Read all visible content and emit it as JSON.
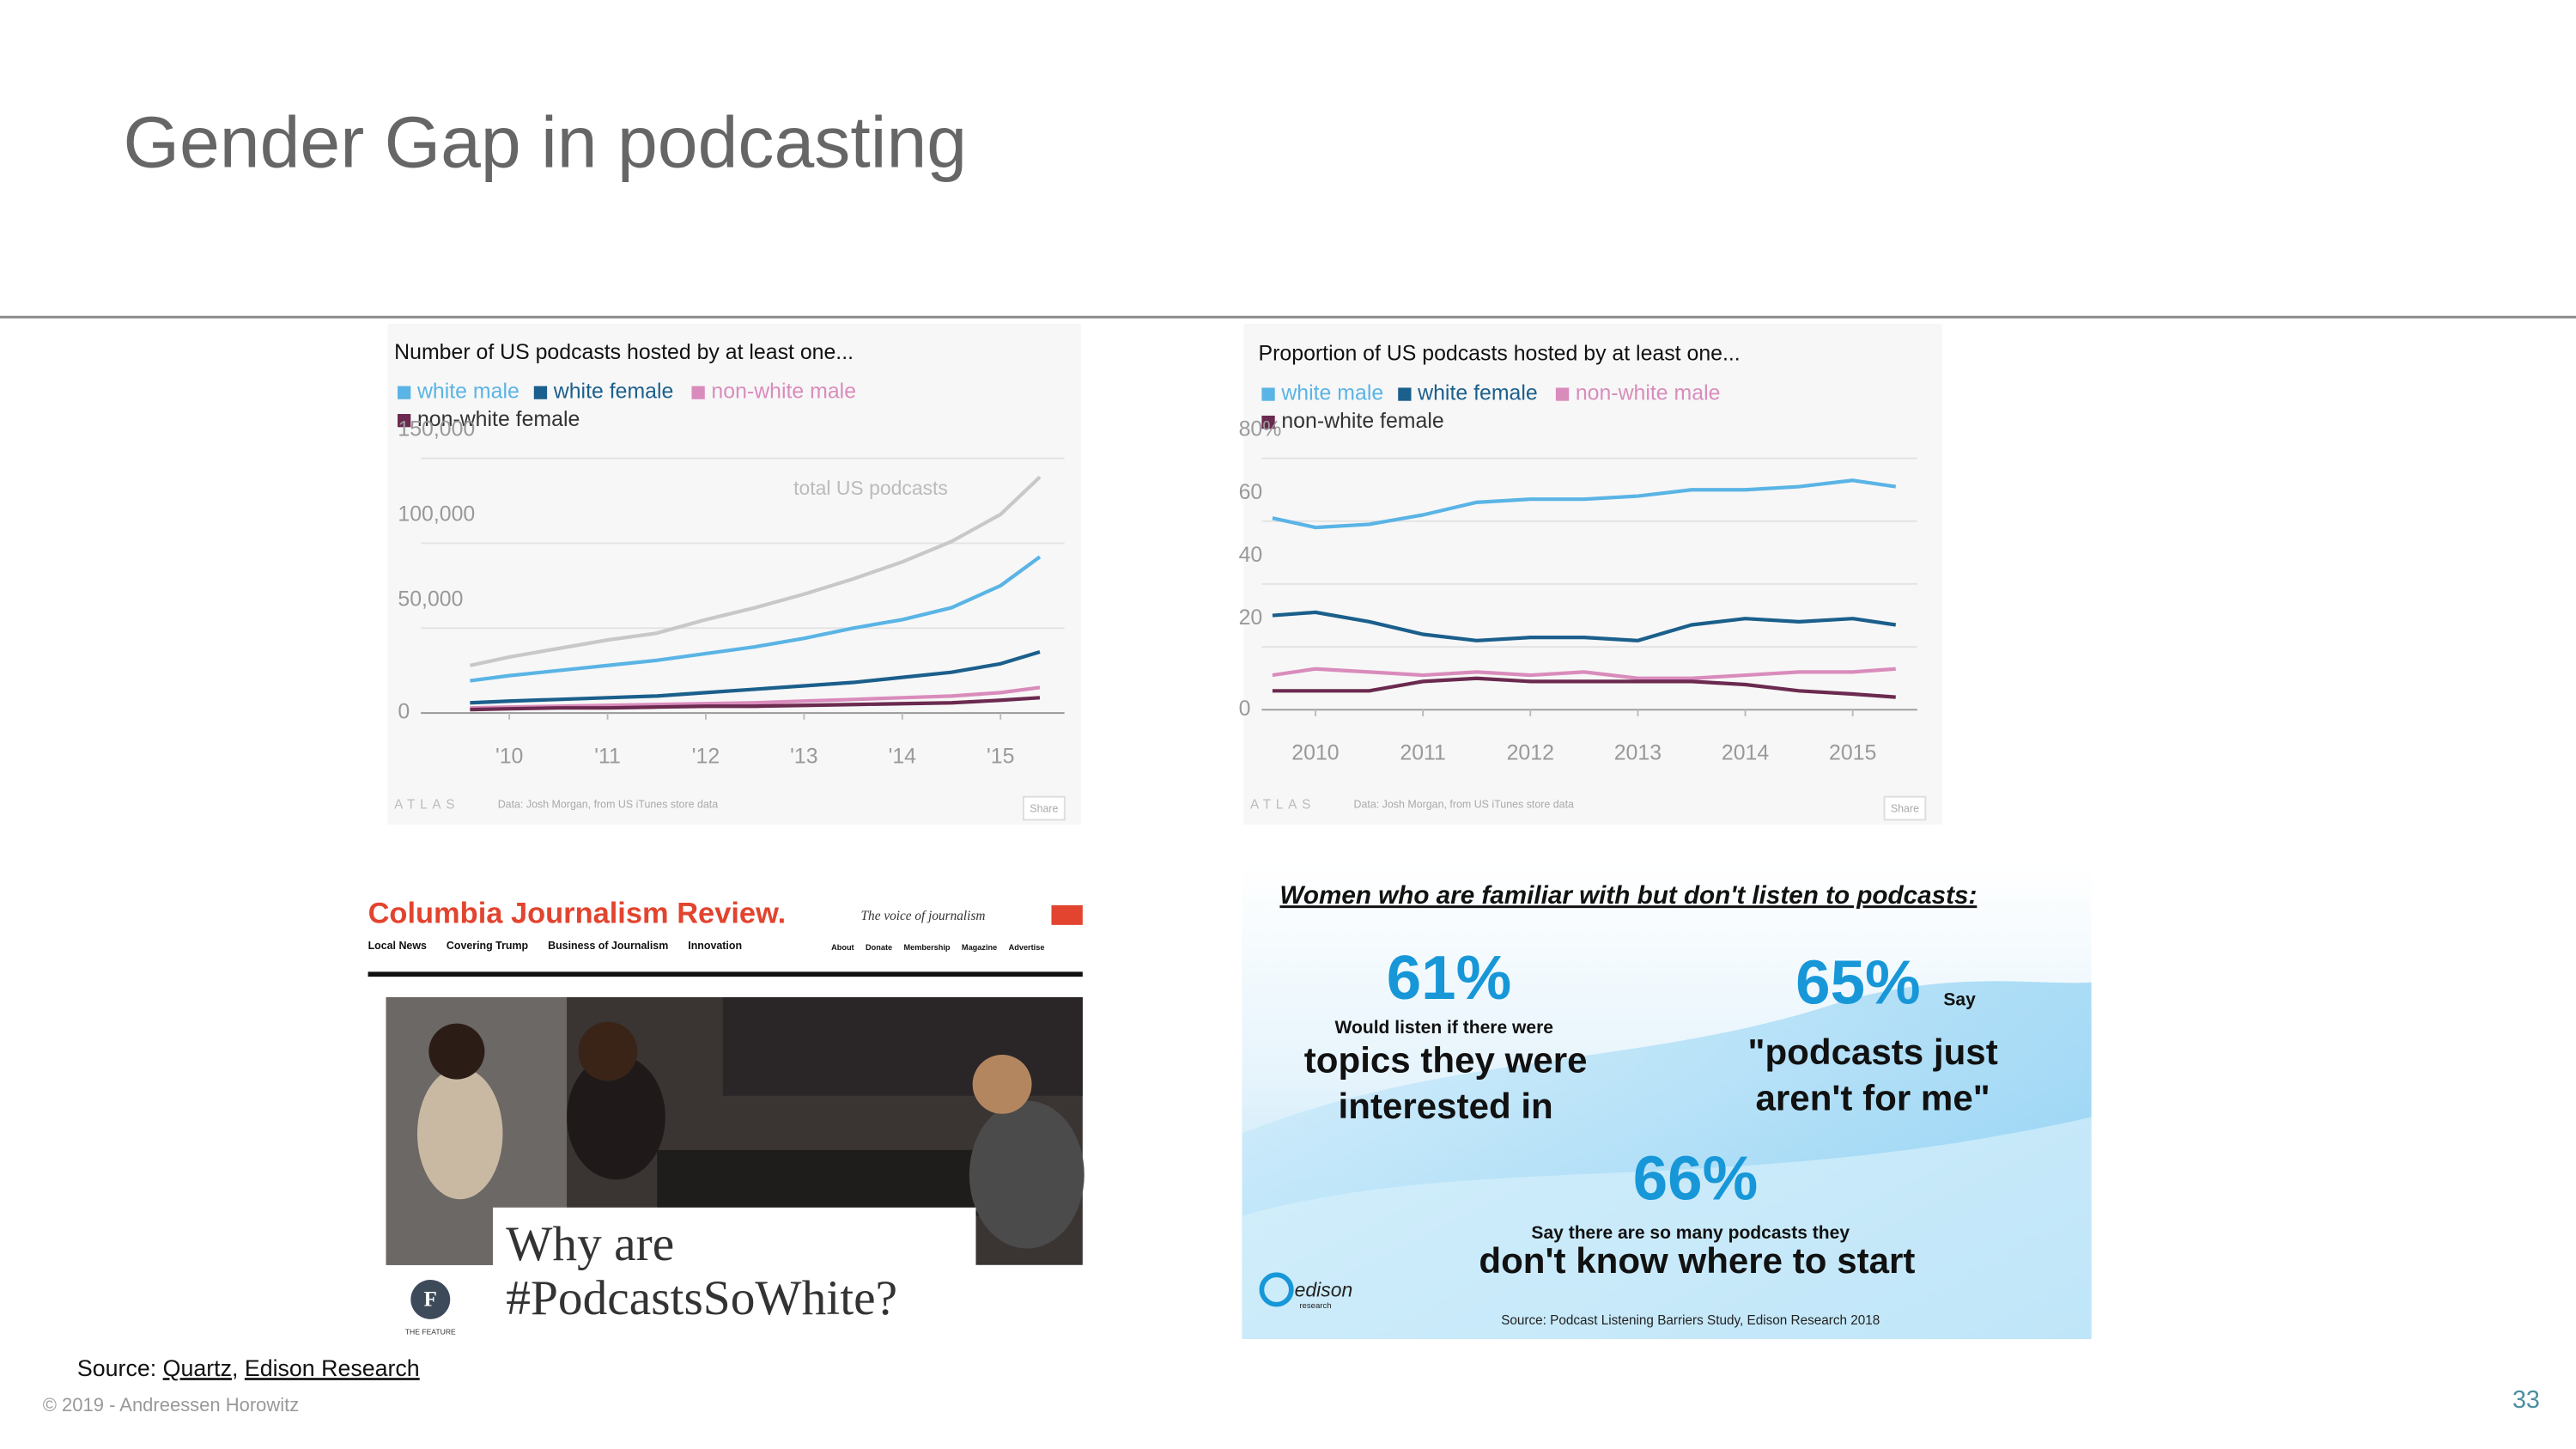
{
  "title": "Gender Gap in podcasting",
  "chart_data": [
    {
      "type": "line",
      "title": "Number of US podcasts hosted by at least one...",
      "x": [
        2009.6,
        2010,
        2010.5,
        2011,
        2011.5,
        2012,
        2012.5,
        2013,
        2013.5,
        2014,
        2014.5,
        2015,
        2015.4
      ],
      "series": [
        {
          "name": "white male",
          "color": "#5ab4e5",
          "values": [
            19000,
            22000,
            25000,
            28000,
            31000,
            35000,
            39000,
            44000,
            50000,
            55000,
            62000,
            75000,
            92000
          ]
        },
        {
          "name": "white female",
          "color": "#1b5f8c",
          "values": [
            6000,
            7000,
            8000,
            9000,
            10000,
            12000,
            14000,
            16000,
            18000,
            21000,
            24000,
            29000,
            36000
          ]
        },
        {
          "name": "non-white male",
          "color": "#d98cbc",
          "values": [
            3000,
            3500,
            4000,
            4500,
            5000,
            5500,
            6000,
            7000,
            8000,
            9000,
            10000,
            12000,
            15000
          ]
        },
        {
          "name": "non-white female",
          "color": "#6b2a4f",
          "values": [
            2000,
            2500,
            3000,
            3000,
            3500,
            4000,
            4000,
            4500,
            5000,
            5500,
            6000,
            7500,
            9000
          ]
        }
      ],
      "total": {
        "name": "total US podcasts",
        "color": "#c8c8c8",
        "values": [
          28000,
          33000,
          38000,
          43000,
          47000,
          55000,
          62000,
          70000,
          79000,
          89000,
          101000,
          117000,
          139000
        ]
      },
      "xlim": [
        2009.1,
        2015.65
      ],
      "xticks": [
        {
          "value": 2010,
          "label": "'10"
        },
        {
          "value": 2011,
          "label": "'11"
        },
        {
          "value": 2012,
          "label": "'12"
        },
        {
          "value": 2013,
          "label": "'13"
        },
        {
          "value": 2014,
          "label": "'14"
        },
        {
          "value": 2015,
          "label": "'15"
        }
      ],
      "ylim": [
        0,
        150000
      ],
      "yticks": [
        0,
        {
          "value": 50000,
          "label": "50,000"
        },
        {
          "value": 100000,
          "label": "100,000"
        },
        {
          "value": 150000,
          "label": "150,000"
        }
      ],
      "grid": true,
      "brand": "ATLAS",
      "note": "Data: Josh Morgan, from US iTunes store data",
      "button": "Share"
    },
    {
      "type": "line",
      "title": "Proportion of US podcasts hosted by at least one...",
      "x": [
        2009.6,
        2010,
        2010.5,
        2011,
        2011.5,
        2012,
        2012.5,
        2013,
        2013.5,
        2014,
        2014.5,
        2015,
        2015.4
      ],
      "series": [
        {
          "name": "white male",
          "color": "#5ab4e5",
          "values": [
            61,
            58,
            59,
            62,
            66,
            67,
            67,
            68,
            70,
            70,
            71,
            73,
            71
          ]
        },
        {
          "name": "white female",
          "color": "#1b5f8c",
          "values": [
            30,
            31,
            28,
            24,
            22,
            23,
            23,
            22,
            27,
            29,
            28,
            29,
            27
          ]
        },
        {
          "name": "non-white male",
          "color": "#d98cbc",
          "values": [
            11,
            13,
            12,
            11,
            12,
            11,
            12,
            10,
            10,
            11,
            12,
            12,
            13
          ]
        },
        {
          "name": "non-white female",
          "color": "#6b2a4f",
          "values": [
            6,
            6,
            6,
            9,
            10,
            9,
            9,
            9,
            9,
            8,
            6,
            5,
            4
          ]
        }
      ],
      "xlim": [
        2009.5,
        2015.6
      ],
      "xticks": [
        2010,
        2011,
        2012,
        2013,
        2014,
        2015
      ],
      "ylim": [
        0,
        80
      ],
      "yticks": [
        0,
        20,
        40,
        60,
        {
          "value": 80,
          "label": "80%"
        }
      ],
      "grid": true,
      "brand": "ATLAS",
      "note": "Data: Josh Morgan, from US iTunes store data",
      "button": "Share"
    }
  ],
  "cjr": {
    "masthead": "Columbia Journalism Review.",
    "tagline": "The voice of journalism",
    "nav": [
      "Local News",
      "Covering Trump",
      "Business of Journalism",
      "Innovation"
    ],
    "subnav": [
      "About",
      "Donate",
      "Membership",
      "Magazine",
      "Advertise"
    ],
    "headline": [
      "Why are",
      "#PodcastsSoWhite?"
    ],
    "badge": "F",
    "section": "THE FEATURE"
  },
  "edison": {
    "heading": "Women who are familiar with but don't listen to podcasts:",
    "stats": [
      {
        "value": "61%",
        "lead": "Would listen if there were",
        "text": [
          "topics they were",
          "interested in"
        ]
      },
      {
        "value": "65%",
        "lead": "Say",
        "text": [
          "\"podcasts just",
          "aren't for me\""
        ]
      },
      {
        "value": "66%",
        "lead": "Say there are so many podcasts they",
        "text": [
          "don't know where to start"
        ]
      }
    ],
    "logo": [
      "edison",
      "research"
    ],
    "source": "Source: Podcast Listening Barriers Study, Edison Research 2018"
  },
  "source": {
    "label": "Source:",
    "links": [
      "Quartz",
      "Edison Research"
    ]
  },
  "footer": "© 2019 - Andreessen Horowitz",
  "page_number": 33
}
